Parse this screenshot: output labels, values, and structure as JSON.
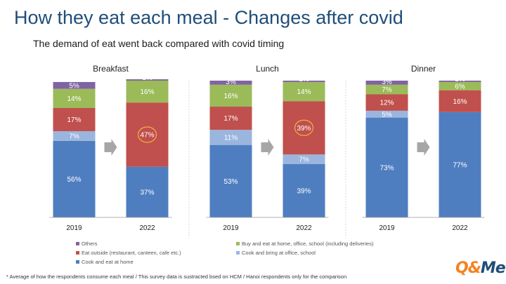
{
  "title": "How they eat each meal - Changes after covid",
  "subtitle": "The demand of eat went back compared with covid timing",
  "chart_data": [
    {
      "type": "bar",
      "stacked": true,
      "title": "Breakfast",
      "categories": [
        "2019",
        "2022"
      ],
      "ylim": [
        0,
        100
      ],
      "series": [
        {
          "name": "Cook and eat at home",
          "color": "#4f7ec0",
          "values": [
            56,
            37
          ],
          "labels": [
            "56%",
            "37%"
          ]
        },
        {
          "name": "Cook and bring at office, school",
          "color": "#9ab6de",
          "values": [
            7,
            0
          ],
          "labels": [
            "7%",
            "0%"
          ]
        },
        {
          "name": "Eat outside (restaurant, canteen, cafe etc.)",
          "color": "#c0504d",
          "values": [
            17,
            47
          ],
          "labels": [
            "17%",
            "47%"
          ]
        },
        {
          "name": "Buy and eat at home, office, school (including deliveries)",
          "color": "#9bbb59",
          "values": [
            14,
            16
          ],
          "labels": [
            "14%",
            "16%"
          ]
        },
        {
          "name": "Others",
          "color": "#8064a2",
          "values": [
            5,
            1
          ],
          "labels": [
            "5%",
            "1%"
          ]
        }
      ],
      "highlight": {
        "series": 2,
        "category": 1
      }
    },
    {
      "type": "bar",
      "stacked": true,
      "title": "Lunch",
      "categories": [
        "2019",
        "2022"
      ],
      "ylim": [
        0,
        100
      ],
      "series": [
        {
          "name": "Cook and eat at home",
          "color": "#4f7ec0",
          "values": [
            53,
            39
          ],
          "labels": [
            "53%",
            "39%"
          ]
        },
        {
          "name": "Cook and bring at office, school",
          "color": "#9ab6de",
          "values": [
            11,
            7
          ],
          "labels": [
            "11%",
            "7%"
          ]
        },
        {
          "name": "Eat outside (restaurant, canteen, cafe etc.)",
          "color": "#c0504d",
          "values": [
            17,
            39
          ],
          "labels": [
            "17%",
            "39%"
          ]
        },
        {
          "name": "Buy and eat at home, office, school (including deliveries)",
          "color": "#9bbb59",
          "values": [
            16,
            14
          ],
          "labels": [
            "16%",
            "14%"
          ]
        },
        {
          "name": "Others",
          "color": "#8064a2",
          "values": [
            3,
            1
          ],
          "labels": [
            "3%",
            "1%"
          ]
        }
      ],
      "highlight": {
        "series": 2,
        "category": 1
      }
    },
    {
      "type": "bar",
      "stacked": true,
      "title": "Dinner",
      "categories": [
        "2019",
        "2022"
      ],
      "ylim": [
        0,
        100
      ],
      "series": [
        {
          "name": "Cook and eat at home",
          "color": "#4f7ec0",
          "values": [
            73,
            77
          ],
          "labels": [
            "73%",
            "77%"
          ]
        },
        {
          "name": "Cook and bring at office, school",
          "color": "#9ab6de",
          "values": [
            5,
            0
          ],
          "labels": [
            "5%",
            "0%"
          ]
        },
        {
          "name": "Eat outside (restaurant, canteen, cafe etc.)",
          "color": "#c0504d",
          "values": [
            12,
            16
          ],
          "labels": [
            "12%",
            "16%"
          ]
        },
        {
          "name": "Buy and eat at home, office, school (including deliveries)",
          "color": "#9bbb59",
          "values": [
            7,
            6
          ],
          "labels": [
            "7%",
            "6%"
          ]
        },
        {
          "name": "Others",
          "color": "#8064a2",
          "values": [
            3,
            1
          ],
          "labels": [
            "3%",
            "1%"
          ]
        }
      ],
      "highlight": null
    }
  ],
  "legend": [
    {
      "label": "Others",
      "color": "#8064a2"
    },
    {
      "label": "Buy and eat at home, office, school (including deliveries)",
      "color": "#9bbb59"
    },
    {
      "label": "Eat outside (restaurant, canteen, cafe etc.)",
      "color": "#c0504d"
    },
    {
      "label": "Cook and bring at office, school",
      "color": "#9ab6de"
    },
    {
      "label": "Cook and eat at home",
      "color": "#4f7ec0"
    }
  ],
  "footnote": "* Average of how the respondents consume each meal / This survey data is sustracted bsed on HCM / Hanoi respondents only for the comparison",
  "logo": {
    "part1": "Q&",
    "part2": "Me"
  }
}
